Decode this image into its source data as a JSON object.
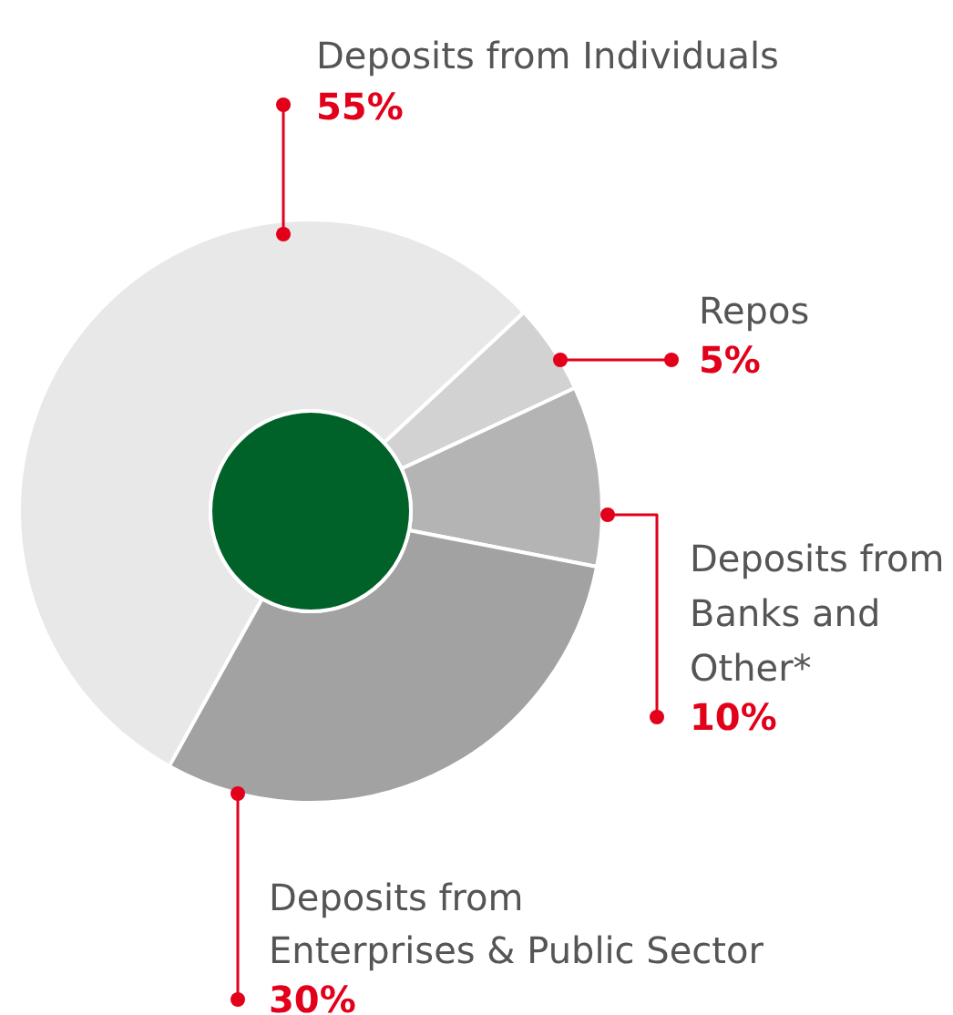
{
  "chart_data": {
    "type": "donut",
    "categories": [
      "Deposits from Individuals",
      "Repos",
      "Deposits from Banks and Other*",
      "Deposits from Enterprises & Public Sector"
    ],
    "values": [
      55,
      5,
      10,
      30
    ],
    "value_labels": [
      "55%",
      "5%",
      "10%",
      "30%"
    ],
    "colors": [
      "#e8e8e8",
      "#d2d2d2",
      "#b4b4b4",
      "#a2a2a2"
    ]
  }
}
